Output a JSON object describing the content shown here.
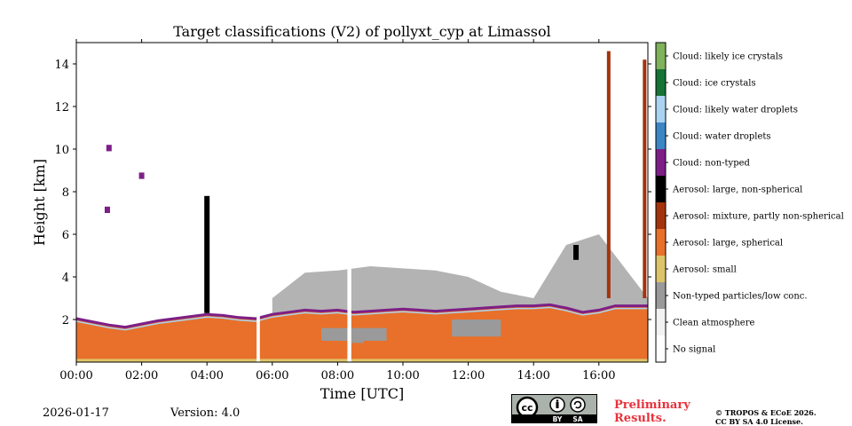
{
  "chart_data": {
    "type": "heatmap",
    "title": "Target classifications (V2) of pollyxt_cyp at Limassol",
    "xlabel": "Time [UTC]",
    "ylabel": "Height [km]",
    "xlim_hours": [
      0,
      17.5
    ],
    "ylim_km": [
      0,
      15
    ],
    "x_ticks": [
      {
        "value": 0,
        "label": "00:00"
      },
      {
        "value": 2,
        "label": "02:00"
      },
      {
        "value": 4,
        "label": "04:00"
      },
      {
        "value": 6,
        "label": "06:00"
      },
      {
        "value": 8,
        "label": "08:00"
      },
      {
        "value": 10,
        "label": "10:00"
      },
      {
        "value": 12,
        "label": "12:00"
      },
      {
        "value": 14,
        "label": "14:00"
      },
      {
        "value": 16,
        "label": "16:00"
      }
    ],
    "y_ticks": [
      {
        "value": 2,
        "label": "2"
      },
      {
        "value": 4,
        "label": "4"
      },
      {
        "value": 6,
        "label": "6"
      },
      {
        "value": 8,
        "label": "8"
      },
      {
        "value": 10,
        "label": "10"
      },
      {
        "value": 12,
        "label": "12"
      },
      {
        "value": 14,
        "label": "14"
      }
    ],
    "classes": [
      {
        "label": "No signal",
        "color": "#ffffff"
      },
      {
        "label": "Clean atmosphere",
        "color": "#f2f2f2"
      },
      {
        "label": "Non-typed particles/low conc.",
        "color": "#9a9a9a"
      },
      {
        "label": "Aerosol: small",
        "color": "#ddc46a"
      },
      {
        "label": "Aerosol: large, spherical",
        "color": "#e8702a"
      },
      {
        "label": "Aerosol: mixture, partly non-spherical",
        "color": "#a3330c"
      },
      {
        "label": "Aerosol: large, non-spherical",
        "color": "#000000"
      },
      {
        "label": "Cloud: non-typed",
        "color": "#7d1f86"
      },
      {
        "label": "Cloud: water droplets",
        "color": "#3c86c6"
      },
      {
        "label": "Cloud: likely water droplets",
        "color": "#a9d3f0"
      },
      {
        "label": "Cloud: ice crystals",
        "color": "#177235"
      },
      {
        "label": "Cloud: likely ice crystals",
        "color": "#7fb25b"
      }
    ],
    "aerosol_layer_top_km": [
      [
        0.0,
        2.0
      ],
      [
        0.5,
        1.85
      ],
      [
        1.0,
        1.7
      ],
      [
        1.5,
        1.6
      ],
      [
        2.0,
        1.75
      ],
      [
        2.5,
        1.9
      ],
      [
        3.0,
        2.0
      ],
      [
        3.5,
        2.1
      ],
      [
        4.0,
        2.2
      ],
      [
        4.5,
        2.15
      ],
      [
        5.0,
        2.05
      ],
      [
        5.5,
        2.0
      ],
      [
        6.0,
        2.2
      ],
      [
        6.5,
        2.3
      ],
      [
        7.0,
        2.4
      ],
      [
        7.5,
        2.35
      ],
      [
        8.0,
        2.4
      ],
      [
        8.5,
        2.3
      ],
      [
        9.0,
        2.35
      ],
      [
        9.5,
        2.4
      ],
      [
        10.0,
        2.45
      ],
      [
        10.5,
        2.4
      ],
      [
        11.0,
        2.35
      ],
      [
        11.5,
        2.4
      ],
      [
        12.0,
        2.45
      ],
      [
        12.5,
        2.5
      ],
      [
        13.0,
        2.55
      ],
      [
        13.5,
        2.6
      ],
      [
        14.0,
        2.6
      ],
      [
        14.5,
        2.65
      ],
      [
        15.0,
        2.5
      ],
      [
        15.5,
        2.3
      ],
      [
        16.0,
        2.4
      ],
      [
        16.5,
        2.6
      ],
      [
        17.0,
        2.6
      ],
      [
        17.5,
        2.6
      ]
    ],
    "non_typed_layer_top_km": [
      [
        6.0,
        3.0
      ],
      [
        7.0,
        4.2
      ],
      [
        8.0,
        4.3
      ],
      [
        9.0,
        4.5
      ],
      [
        10.0,
        4.4
      ],
      [
        11.0,
        4.3
      ],
      [
        12.0,
        4.0
      ],
      [
        13.0,
        3.3
      ],
      [
        14.0,
        3.0
      ],
      [
        15.0,
        5.5
      ],
      [
        16.0,
        6.0
      ],
      [
        17.5,
        3.0
      ]
    ],
    "no_signal_gaps_h": [
      [
        5.52,
        5.62
      ],
      [
        8.3,
        8.42
      ]
    ],
    "features": [
      {
        "class": "Aerosol: large, non-spherical",
        "time_h": 4.0,
        "bottom_km": 2.3,
        "top_km": 7.8
      },
      {
        "class": "Aerosol: large, non-spherical",
        "time_h": 15.3,
        "bottom_km": 4.8,
        "top_km": 5.5
      },
      {
        "class": "Cloud: non-typed",
        "time_h": 1.0,
        "bottom_km": 9.9,
        "top_km": 10.2
      },
      {
        "class": "Cloud: non-typed",
        "time_h": 0.95,
        "bottom_km": 7.0,
        "top_km": 7.3
      },
      {
        "class": "Cloud: non-typed",
        "time_h": 2.0,
        "bottom_km": 8.6,
        "top_km": 8.9
      },
      {
        "class": "Aerosol: mixture, partly non-spherical",
        "time_h": 16.3,
        "bottom_km": 3.0,
        "top_km": 14.6
      },
      {
        "class": "Aerosol: mixture, partly non-spherical",
        "time_h": 17.4,
        "bottom_km": 3.0,
        "top_km": 14.2
      }
    ]
  },
  "footer": {
    "date": "2026-01-17",
    "version": "Version: 4.0",
    "preliminary_line1": "Preliminary",
    "preliminary_line2": "Results.",
    "copyright_line1": "© TROPOS & ECoE 2026.",
    "copyright_line2": "CC BY SA 4.0 License.",
    "license_badge": {
      "cc": "cc",
      "by": "BY",
      "sa": "SA"
    }
  }
}
